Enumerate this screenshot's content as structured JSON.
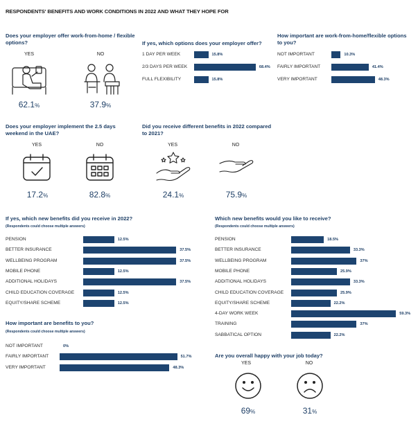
{
  "title": "RESPONDENTS' BENEFITS AND WORK CONDITIONS IN 2022 AND WHAT THEY HOPE FOR",
  "colors": {
    "accent": "#1d4470",
    "text_accent": "#1e3f66"
  },
  "wfh_offer": {
    "question": "Does your employer offer work-from-home / flexible options?",
    "yes_label": "YES",
    "no_label": "NO",
    "yes_value": "62.1",
    "no_value": "37.9",
    "unit": "%",
    "yes_icon": "person-relaxing-on-couch-icon",
    "no_icon": "people-working-at-desks-icon"
  },
  "weekend": {
    "question": "Does your employer implement the 2.5 days weekend in the UAE?",
    "yes_label": "YES",
    "no_label": "NO",
    "yes_value": "17.2",
    "no_value": "82.8",
    "unit": "%",
    "yes_icon": "calendar-check-icon",
    "no_icon": "calendar-grid-icon"
  },
  "diff_benefits": {
    "question": "Did you receive different benefits in 2022 compared to 2021?",
    "yes_label": "YES",
    "no_label": "NO",
    "yes_value": "24.1",
    "no_value": "75.9",
    "unit": "%",
    "yes_icon": "hand-with-stars-icon",
    "no_icon": "empty-hand-icon"
  },
  "happy": {
    "question": "Are you overall happy with your job today?",
    "yes_label": "YES",
    "no_label": "NO",
    "yes_value": "69",
    "no_value": "31",
    "unit": "%",
    "yes_icon": "smiley-face-icon",
    "no_icon": "sad-face-icon"
  },
  "chart_data": [
    {
      "id": "options",
      "type": "bar",
      "title": "If yes, which options does your employer offer?",
      "categories": [
        "1 DAY PER WEEK",
        "2/3 DAYS PER WEEK",
        "FULL FLEXIBILITY"
      ],
      "values": [
        15.8,
        68.4,
        15.8
      ],
      "labels": [
        "15.8%",
        "68.4%",
        "15.8%"
      ],
      "xlim": [
        0,
        100
      ]
    },
    {
      "id": "wfh_importance",
      "type": "bar",
      "title": "How important are work-from-home/flexible options to you?",
      "categories": [
        "NOT IMPORTANT",
        "FAIRLY IMPORTANT",
        "VERY IMPORTANT"
      ],
      "values": [
        10.3,
        41.4,
        48.3
      ],
      "labels": [
        "10.3%",
        "41.4%",
        "48.3%"
      ],
      "xlim": [
        0,
        100
      ]
    },
    {
      "id": "new_benefits",
      "type": "bar",
      "title": "If yes, which new benefits did you receive in 2022?",
      "subtitle": "(Respondents could choose multiple answers)",
      "categories": [
        "PENSION",
        "BETTER INSURANCE",
        "WELLBEING PROGRAM",
        "MOBILE PHONE",
        "ADDITIONAL HOLIDAYS",
        "CHILD EDUCATION COVERAGE",
        "EQUITY/SHARE SCHEME"
      ],
      "values": [
        12.5,
        37.5,
        37.5,
        12.5,
        37.5,
        12.5,
        12.5
      ],
      "labels": [
        "12.5%",
        "37.5%",
        "37.5%",
        "12.5%",
        "37.5%",
        "12.5%",
        "12.5%"
      ],
      "xlim": [
        0,
        100
      ]
    },
    {
      "id": "benefits_importance",
      "type": "bar",
      "title": "How important are benefits to you?",
      "subtitle": "(Respondents could choose multiple answers)",
      "categories": [
        "NOT IMPORTANT",
        "FAIRLY IMPORTANT",
        "VERY IMPORTANT"
      ],
      "values": [
        0,
        51.7,
        48.3
      ],
      "labels": [
        "0%",
        "51.7%",
        "48.3%"
      ],
      "xlim": [
        0,
        100
      ]
    },
    {
      "id": "wished_benefits",
      "type": "bar",
      "title": "Which new benefits would you like to receive?",
      "subtitle": "(Respondents could choose multiple answers)",
      "categories": [
        "PENSION",
        "BETTER INSURANCE",
        "WELLBEING PROGRAM",
        "MOBILE PHONE",
        "ADDITIONAL HOLIDAYS",
        "CHILD EDUCATION COVERAGE",
        "EQUITY/SHARE SCHEME",
        "4-DAY WORK WEEK",
        "TRAINING",
        "SABBATICAL OPTION"
      ],
      "values": [
        18.5,
        33.3,
        37,
        25.9,
        33.3,
        25.9,
        22.2,
        59.3,
        37,
        22.2
      ],
      "labels": [
        "18.5%",
        "33.3%",
        "37%",
        "25.9%",
        "33.3%",
        "25.9%",
        "22.2%",
        "59.3%",
        "37%",
        "22.2%"
      ],
      "xlim": [
        0,
        100
      ]
    }
  ]
}
